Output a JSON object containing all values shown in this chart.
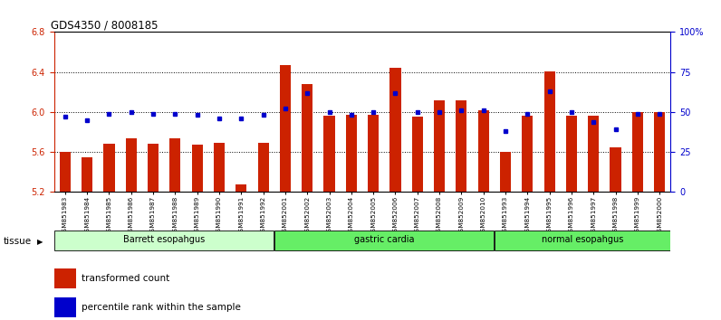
{
  "title": "GDS4350 / 8008185",
  "samples": [
    "GSM851983",
    "GSM851984",
    "GSM851985",
    "GSM851986",
    "GSM851987",
    "GSM851988",
    "GSM851989",
    "GSM851990",
    "GSM851991",
    "GSM851992",
    "GSM852001",
    "GSM852002",
    "GSM852003",
    "GSM852004",
    "GSM852005",
    "GSM852006",
    "GSM852007",
    "GSM852008",
    "GSM852009",
    "GSM852010",
    "GSM851993",
    "GSM851994",
    "GSM851995",
    "GSM851996",
    "GSM851997",
    "GSM851998",
    "GSM851999",
    "GSM852000"
  ],
  "red_values": [
    5.6,
    5.55,
    5.68,
    5.74,
    5.68,
    5.74,
    5.67,
    5.69,
    5.28,
    5.69,
    6.47,
    6.28,
    5.96,
    5.97,
    5.97,
    6.44,
    5.95,
    6.12,
    6.12,
    6.02,
    5.6,
    5.96,
    6.41,
    5.96,
    5.96,
    5.65,
    6.0,
    6.0
  ],
  "blue_values": [
    47,
    45,
    49,
    50,
    49,
    49,
    48,
    46,
    46,
    48,
    52,
    62,
    50,
    48,
    50,
    62,
    50,
    50,
    51,
    51,
    38,
    49,
    63,
    50,
    44,
    39,
    49,
    49
  ],
  "group_colors": [
    "#ccffcc",
    "#66ee66",
    "#66ee66"
  ],
  "group_ranges": [
    [
      0,
      9
    ],
    [
      10,
      19
    ],
    [
      20,
      27
    ]
  ],
  "group_labels": [
    "Barrett esopahgus",
    "gastric cardia",
    "normal esopahgus"
  ],
  "ylim_left": [
    5.2,
    6.8
  ],
  "ylim_right": [
    0,
    100
  ],
  "y_ticks_left": [
    5.2,
    5.6,
    6.0,
    6.4,
    6.8
  ],
  "y_ticks_right": [
    0,
    25,
    50,
    75,
    100
  ],
  "bar_color": "#cc2200",
  "dot_color": "#0000cc",
  "axis_left_color": "#cc2200",
  "axis_right_color": "#0000cc",
  "bar_bottom": 5.2,
  "legend_items": [
    {
      "label": "transformed count",
      "color": "#cc2200"
    },
    {
      "label": "percentile rank within the sample",
      "color": "#0000cc"
    }
  ],
  "tissue_label": "tissue",
  "bg_color": "#ffffff"
}
